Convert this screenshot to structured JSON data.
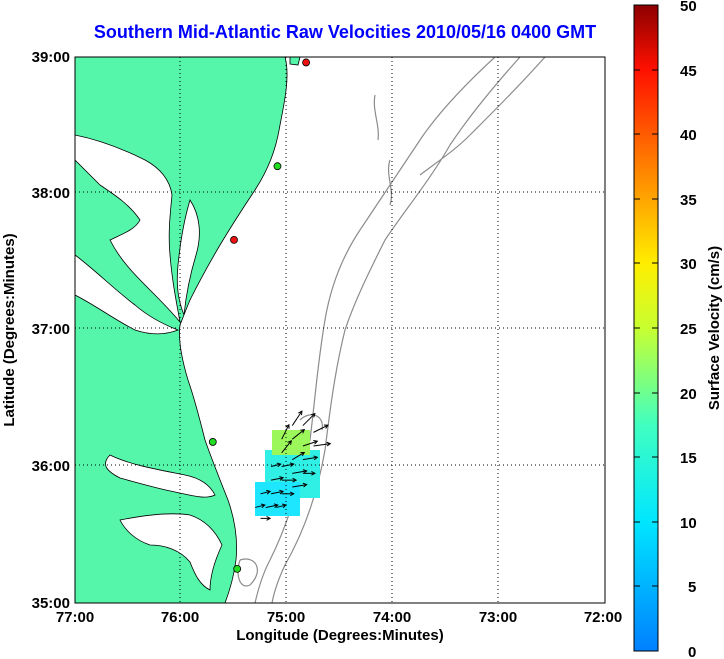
{
  "title": "Southern Mid-Atlantic Raw Velocities 2010/05/16 0400 GMT",
  "xlabel": "Longitude (Degrees:Minutes)",
  "ylabel": "Latitude (Degrees:Minutes)",
  "colorbar_label": "Surface Velocity (cm/s)",
  "x_ticks": [
    "77:00",
    "76:00",
    "75:00",
    "74:00",
    "73:00",
    "72:00"
  ],
  "y_ticks": [
    "39:00",
    "38:00",
    "37:00",
    "36:00",
    "35:00"
  ],
  "colorbar_ticks": [
    "50",
    "45",
    "40",
    "35",
    "30",
    "25",
    "20",
    "15",
    "10",
    "5",
    "0"
  ],
  "colors": {
    "land": "#55f5aa",
    "coastline": "#000000",
    "bathymetry": "#8c8c8c",
    "title": "#0000ff",
    "site_active": "#22dd22",
    "site_inactive": "#ee1111"
  },
  "map": {
    "lon_range": [
      -77,
      -72
    ],
    "lat_range": [
      35,
      39
    ],
    "grid": true,
    "colormap": "jet",
    "velocity_range_cms": [
      0,
      50
    ]
  },
  "radar_sites": [
    {
      "status": "inactive",
      "lon": -74.82,
      "lat": 38.96
    },
    {
      "status": "active",
      "lon": -75.09,
      "lat": 38.2
    },
    {
      "status": "inactive",
      "lon": -75.5,
      "lat": 37.66
    },
    {
      "status": "active",
      "lon": -75.7,
      "lat": 36.18
    },
    {
      "status": "active",
      "lon": -75.47,
      "lat": 35.25
    }
  ],
  "chart_data": {
    "type": "vector-field",
    "xlabel": "Longitude (Degrees:Minutes)",
    "ylabel": "Latitude (Degrees:Minutes)",
    "colorbar_range": [
      0,
      50
    ],
    "colorbar_label": "Surface Velocity (cm/s)",
    "vectors": [
      {
        "lon": -74.95,
        "lat": 36.3,
        "u": 4,
        "v": 6,
        "speed": 20
      },
      {
        "lon": -74.85,
        "lat": 36.3,
        "u": 5,
        "v": 5,
        "speed": 18
      },
      {
        "lon": -74.75,
        "lat": 36.25,
        "u": 6,
        "v": 3,
        "speed": 17
      },
      {
        "lon": -75.05,
        "lat": 36.2,
        "u": 3,
        "v": 6,
        "speed": 21
      },
      {
        "lon": -74.95,
        "lat": 36.2,
        "u": 5,
        "v": 4,
        "speed": 19
      },
      {
        "lon": -74.85,
        "lat": 36.15,
        "u": 6,
        "v": 2,
        "speed": 16
      },
      {
        "lon": -74.75,
        "lat": 36.15,
        "u": 7,
        "v": 1,
        "speed": 15
      },
      {
        "lon": -75.05,
        "lat": 36.1,
        "u": 4,
        "v": 5,
        "speed": 20
      },
      {
        "lon": -74.95,
        "lat": 36.05,
        "u": 5,
        "v": 3,
        "speed": 17
      },
      {
        "lon": -74.85,
        "lat": 36.05,
        "u": 6,
        "v": 1,
        "speed": 14
      },
      {
        "lon": -75.15,
        "lat": 36.0,
        "u": 4,
        "v": 1,
        "speed": 12
      },
      {
        "lon": -75.05,
        "lat": 36.0,
        "u": 5,
        "v": 1,
        "speed": 12
      },
      {
        "lon": -74.95,
        "lat": 35.95,
        "u": 6,
        "v": 1,
        "speed": 11
      },
      {
        "lon": -74.85,
        "lat": 35.95,
        "u": 5,
        "v": 0,
        "speed": 11
      },
      {
        "lon": -75.15,
        "lat": 35.9,
        "u": 5,
        "v": 1,
        "speed": 12
      },
      {
        "lon": -75.05,
        "lat": 35.9,
        "u": 6,
        "v": 0,
        "speed": 11
      },
      {
        "lon": -74.95,
        "lat": 35.85,
        "u": 6,
        "v": 1,
        "speed": 10
      },
      {
        "lon": -75.25,
        "lat": 35.8,
        "u": 4,
        "v": 1,
        "speed": 11
      },
      {
        "lon": -75.15,
        "lat": 35.8,
        "u": 5,
        "v": 1,
        "speed": 10
      },
      {
        "lon": -75.05,
        "lat": 35.8,
        "u": 5,
        "v": 0,
        "speed": 10
      },
      {
        "lon": -75.3,
        "lat": 35.7,
        "u": 4,
        "v": 1,
        "speed": 9
      },
      {
        "lon": -75.2,
        "lat": 35.7,
        "u": 5,
        "v": 1,
        "speed": 9
      },
      {
        "lon": -75.1,
        "lat": 35.7,
        "u": 4,
        "v": 1,
        "speed": 8
      },
      {
        "lon": -75.25,
        "lat": 35.62,
        "u": 4,
        "v": 0,
        "speed": 8
      }
    ]
  }
}
